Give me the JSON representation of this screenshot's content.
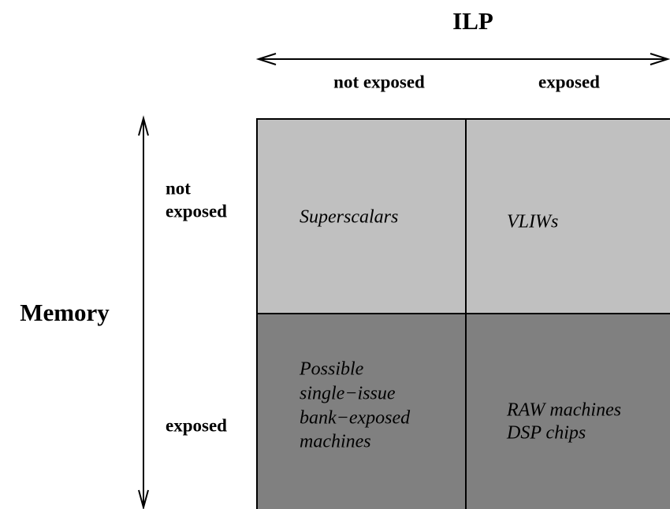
{
  "title": "ILP",
  "row_axis_label": "Memory",
  "columns": [
    "not exposed",
    "exposed"
  ],
  "rows": [
    {
      "label": [
        "not",
        "exposed"
      ]
    },
    {
      "label": [
        "exposed"
      ]
    }
  ],
  "cells": [
    [
      [
        "Superscalars"
      ],
      [
        "VLIWs"
      ]
    ],
    [
      [
        "Possible",
        "single−issue",
        "bank−exposed",
        "machines"
      ],
      [
        "RAW machines",
        "DSP chips"
      ]
    ]
  ]
}
